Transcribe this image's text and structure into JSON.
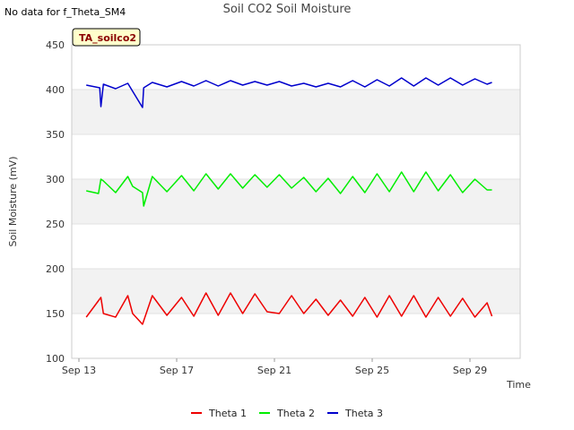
{
  "header": {
    "no_data_text": "No data for f_Theta_SM4"
  },
  "chart_data": {
    "type": "line",
    "title": "Soil CO2 Soil Moisture",
    "xlabel": "Time",
    "ylabel": "Soil Moisture (mV)",
    "ylim": [
      100,
      450
    ],
    "yticks": [
      100,
      150,
      200,
      250,
      300,
      350,
      400,
      450
    ],
    "xlim_days": [
      0,
      18
    ],
    "xticks": [
      {
        "day": 0,
        "label": "Sep 13"
      },
      {
        "day": 4,
        "label": "Sep 17"
      },
      {
        "day": 8,
        "label": "Sep 21"
      },
      {
        "day": 12,
        "label": "Sep 25"
      },
      {
        "day": 16,
        "label": "Sep 29"
      }
    ],
    "tag": "TA_soilco2",
    "legend_position": "bottom-center",
    "colors": {
      "theta1": "#ee0000",
      "theta2": "#00ee00",
      "theta3": "#0000cc"
    },
    "series": [
      {
        "key": "theta1",
        "name": "Theta 1",
        "x": [
          0.3,
          0.9,
          1.0,
          1.5,
          2.0,
          2.2,
          2.6,
          3.0,
          3.6,
          4.2,
          4.7,
          5.2,
          5.7,
          6.2,
          6.7,
          7.2,
          7.7,
          8.2,
          8.7,
          9.2,
          9.7,
          10.2,
          10.7,
          11.2,
          11.7,
          12.2,
          12.7,
          13.2,
          13.7,
          14.2,
          14.7,
          15.2,
          15.7,
          16.2,
          16.7,
          16.9
        ],
        "y": [
          146,
          168,
          150,
          146,
          170,
          150,
          138,
          170,
          148,
          168,
          147,
          173,
          148,
          173,
          150,
          172,
          152,
          150,
          170,
          150,
          166,
          148,
          165,
          147,
          168,
          146,
          170,
          147,
          170,
          146,
          168,
          147,
          167,
          146,
          162,
          147
        ]
      },
      {
        "key": "theta2",
        "name": "Theta 2",
        "x": [
          0.3,
          0.8,
          0.9,
          1.0,
          1.5,
          2.0,
          2.2,
          2.6,
          2.65,
          3.0,
          3.6,
          4.2,
          4.7,
          5.2,
          5.7,
          6.2,
          6.7,
          7.2,
          7.7,
          8.2,
          8.7,
          9.2,
          9.7,
          10.2,
          10.7,
          11.2,
          11.7,
          12.2,
          12.7,
          13.2,
          13.7,
          14.2,
          14.7,
          15.2,
          15.7,
          16.2,
          16.7,
          16.9
        ],
        "y": [
          287,
          284,
          300,
          298,
          285,
          303,
          292,
          285,
          270,
          303,
          286,
          304,
          287,
          306,
          289,
          306,
          290,
          305,
          291,
          305,
          290,
          302,
          286,
          301,
          284,
          303,
          285,
          306,
          286,
          308,
          286,
          308,
          287,
          305,
          285,
          300,
          288,
          288
        ]
      },
      {
        "key": "theta3",
        "name": "Theta 3",
        "x": [
          0.3,
          0.85,
          0.9,
          1.0,
          1.5,
          2.0,
          2.6,
          2.65,
          3.0,
          3.6,
          4.2,
          4.7,
          5.2,
          5.7,
          6.2,
          6.7,
          7.2,
          7.7,
          8.2,
          8.7,
          9.2,
          9.7,
          10.2,
          10.7,
          11.2,
          11.7,
          12.2,
          12.7,
          13.2,
          13.7,
          14.2,
          14.7,
          15.2,
          15.7,
          16.2,
          16.7,
          16.9
        ],
        "y": [
          405,
          402,
          381,
          406,
          401,
          407,
          380,
          402,
          408,
          403,
          409,
          404,
          410,
          404,
          410,
          405,
          409,
          405,
          409,
          404,
          407,
          403,
          407,
          403,
          410,
          403,
          411,
          404,
          413,
          404,
          413,
          405,
          413,
          405,
          412,
          406,
          408
        ]
      }
    ]
  }
}
